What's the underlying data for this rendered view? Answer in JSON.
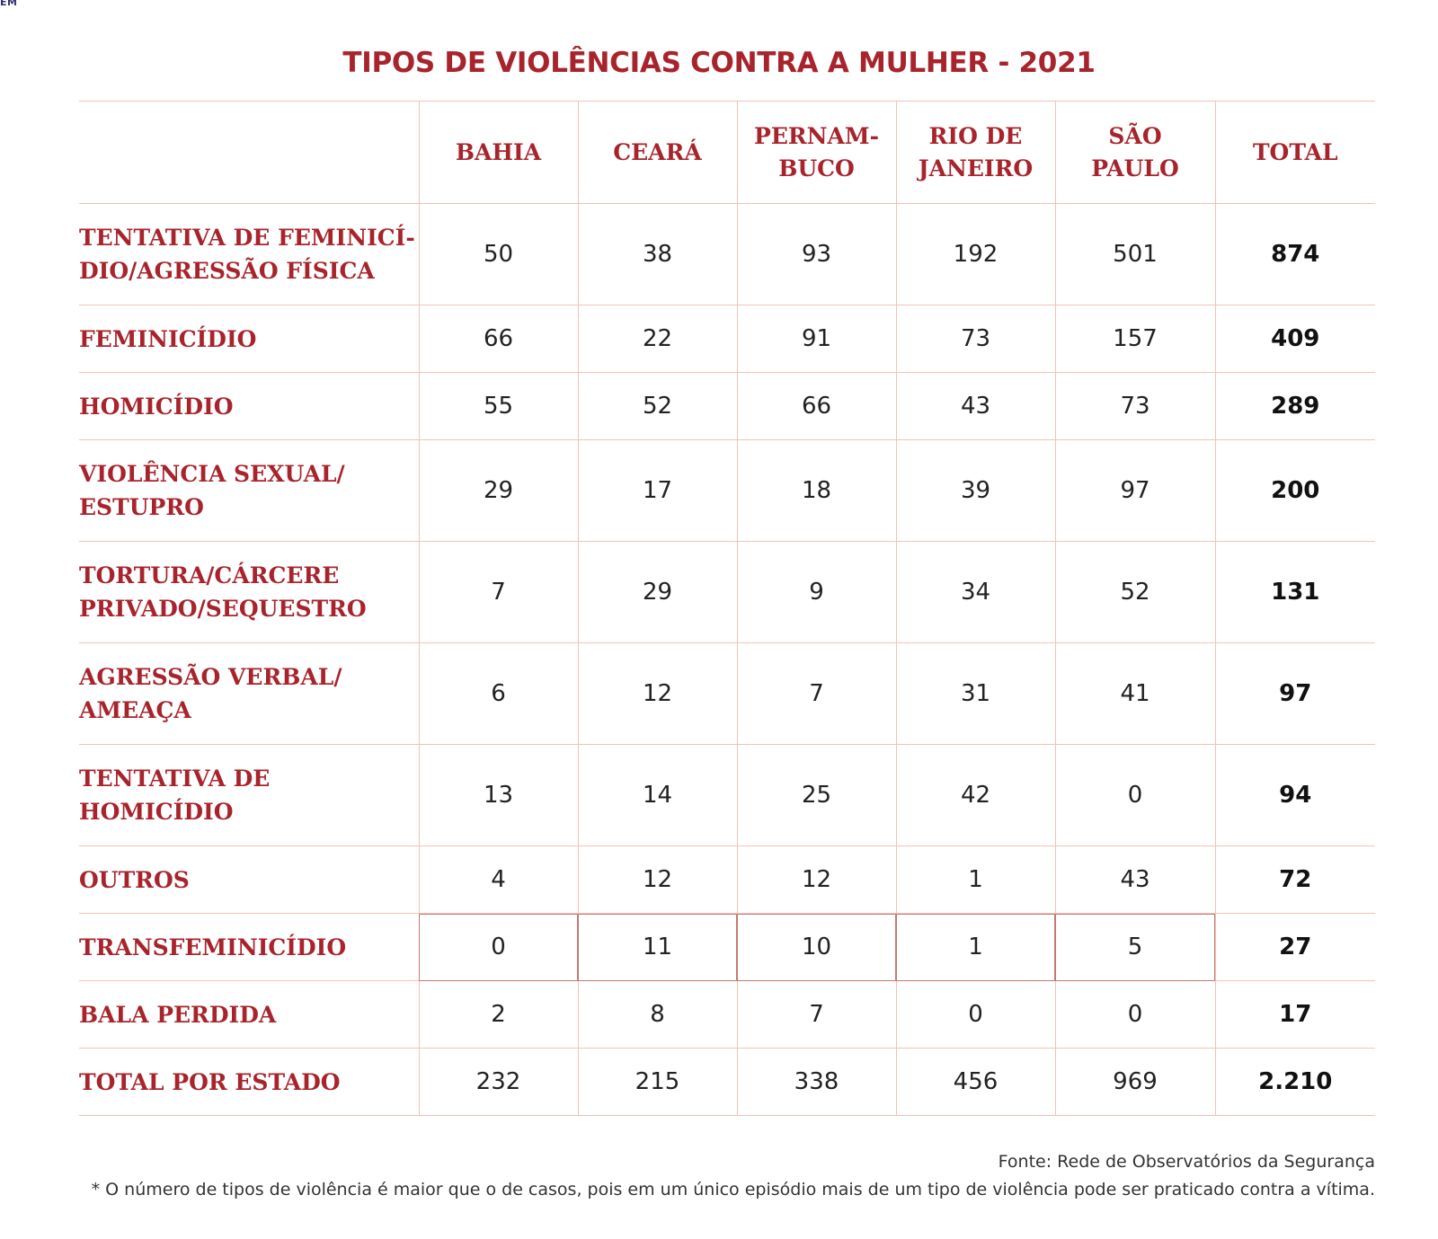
{
  "corner_text": "EM",
  "title": "TIPOS DE VIOLÊNCIAS CONTRA A MULHER - 2021",
  "columns": [
    "BAHIA",
    "CEARÁ",
    "PERNAM-\nBUCO",
    "RIO DE\nJANEIRO",
    "SÃO\nPAULO",
    "TOTAL"
  ],
  "rows": [
    {
      "label": "TENTATIVA DE FEMINICÍ-\nDIO/AGRESSÃO FÍSICA",
      "values": [
        "50",
        "38",
        "93",
        "192",
        "501"
      ],
      "total": "874"
    },
    {
      "label": "FEMINICÍDIO",
      "values": [
        "66",
        "22",
        "91",
        "73",
        "157"
      ],
      "total": "409"
    },
    {
      "label": "HOMICÍDIO",
      "values": [
        "55",
        "52",
        "66",
        "43",
        "73"
      ],
      "total": "289"
    },
    {
      "label": "VIOLÊNCIA SEXUAL/\nESTUPRO",
      "values": [
        "29",
        "17",
        "18",
        "39",
        "97"
      ],
      "total": "200"
    },
    {
      "label": "TORTURA/CÁRCERE\nPRIVADO/SEQUESTRO",
      "values": [
        "7",
        "29",
        "9",
        "34",
        "52"
      ],
      "total": "131"
    },
    {
      "label": "AGRESSÃO VERBAL/\nAMEAÇA",
      "values": [
        "6",
        "12",
        "7",
        "31",
        "41"
      ],
      "total": "97"
    },
    {
      "label": "TENTATIVA DE\nHOMICÍDIO",
      "values": [
        "13",
        "14",
        "25",
        "42",
        "0"
      ],
      "total": "94"
    },
    {
      "label": "OUTROS",
      "values": [
        "4",
        "12",
        "12",
        "1",
        "43"
      ],
      "total": "72"
    },
    {
      "label": "TRANSFEMINICÍDIO",
      "values": [
        "0",
        "11",
        "10",
        "1",
        "5"
      ],
      "total": "27"
    },
    {
      "label": "BALA PERDIDA",
      "values": [
        "2",
        "8",
        "7",
        "0",
        "0"
      ],
      "total": "17"
    },
    {
      "label": "TOTAL POR ESTADO",
      "values": [
        "232",
        "215",
        "338",
        "456",
        "969"
      ],
      "total": "2.210"
    }
  ],
  "source": "Fonte: Rede de Observatórios da Segurança",
  "footnote": "* O número de tipos de violência é maior que o de casos, pois em um único episódio mais de um tipo de violência pode ser praticado contra a vítima.",
  "colors": {
    "accent": "#a8242c",
    "grid": "#efc4b8",
    "highlight_border": "#c47a72",
    "text": "#222222"
  }
}
